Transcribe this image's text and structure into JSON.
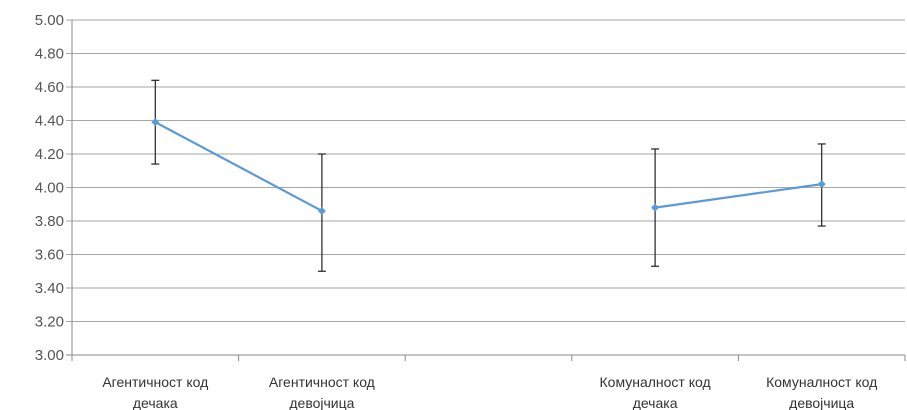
{
  "chart_data": {
    "type": "line",
    "title": "",
    "xlabel": "",
    "ylabel": "",
    "ylim": [
      3.0,
      5.0
    ],
    "ytick_step": 0.2,
    "yticks": [
      "3.00",
      "3.20",
      "3.40",
      "3.60",
      "3.80",
      "4.00",
      "4.20",
      "4.40",
      "4.60",
      "4.80",
      "5.00"
    ],
    "grid": true,
    "legend": "none",
    "categories": [
      [
        "Агентичност код",
        "дечака"
      ],
      [
        "Агентичност код",
        "девојчица"
      ],
      [
        "",
        ""
      ],
      [
        "Комуналност код",
        "дечака"
      ],
      [
        "Комуналност код",
        "девојчица"
      ]
    ],
    "series": [
      {
        "color": "#5B9BD5",
        "values": [
          4.39,
          3.86,
          null,
          3.88,
          4.02
        ],
        "error_upper": [
          4.64,
          4.2,
          null,
          4.23,
          4.26
        ],
        "error_lower": [
          4.14,
          3.5,
          null,
          3.53,
          3.77
        ]
      }
    ],
    "colors": {
      "line": "#5B9BD5",
      "error_bar": "#222222",
      "grid": "#A6A6A6",
      "axis": "#888888"
    }
  }
}
